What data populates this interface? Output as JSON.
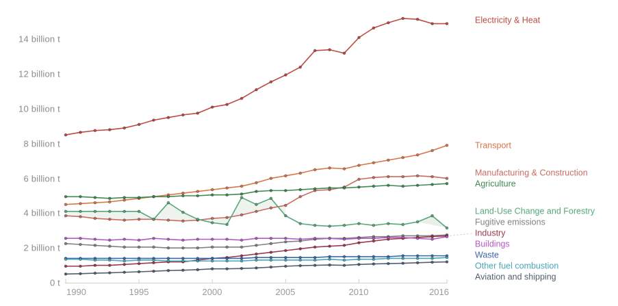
{
  "chart_data": {
    "type": "line",
    "title": "",
    "xlabel": "",
    "ylabel": "",
    "unit": "billion t",
    "grid": false,
    "legend_position": "right",
    "ylim": [
      0,
      15.6
    ],
    "x": [
      1990,
      1991,
      1992,
      1993,
      1994,
      1995,
      1996,
      1997,
      1998,
      1999,
      2000,
      2001,
      2002,
      2003,
      2004,
      2005,
      2006,
      2007,
      2008,
      2009,
      2010,
      2011,
      2012,
      2013,
      2014,
      2015,
      2016
    ],
    "x_tick_years": [
      1990,
      1995,
      2000,
      2005,
      2010,
      2016
    ],
    "x_tick_labels": [
      "1990",
      "1995",
      "2000",
      "2005",
      "2010",
      "2016"
    ],
    "y_tick_values": [
      0,
      2,
      4,
      6,
      8,
      10,
      12,
      14
    ],
    "y_tick_labels": [
      "0 t",
      "2 billion t",
      "4 billion t",
      "6 billion t",
      "8 billion t",
      "10 billion t",
      "12 billion t",
      "14 billion t"
    ],
    "series": [
      {
        "name": "Electricity & Heat",
        "color": "#bf4a44",
        "values": [
          8.5,
          8.65,
          8.75,
          8.8,
          8.9,
          9.1,
          9.35,
          9.5,
          9.65,
          9.75,
          10.1,
          10.25,
          10.6,
          11.1,
          11.55,
          11.95,
          12.4,
          13.35,
          13.4,
          13.2,
          14.1,
          14.65,
          14.95,
          15.2,
          15.15,
          14.9,
          14.9
        ]
      },
      {
        "name": "Transport",
        "color": "#d9764a",
        "values": [
          4.5,
          4.55,
          4.6,
          4.65,
          4.75,
          4.85,
          4.95,
          5.05,
          5.15,
          5.25,
          5.35,
          5.45,
          5.55,
          5.75,
          6.0,
          6.15,
          6.3,
          6.5,
          6.6,
          6.55,
          6.75,
          6.9,
          7.05,
          7.2,
          7.35,
          7.6,
          7.9
        ]
      },
      {
        "name": "Manufacturing & Construction",
        "color": "#c96d62",
        "values": [
          3.85,
          3.8,
          3.7,
          3.65,
          3.6,
          3.65,
          3.65,
          3.6,
          3.55,
          3.6,
          3.7,
          3.75,
          3.9,
          4.1,
          4.3,
          4.45,
          4.95,
          5.3,
          5.35,
          5.5,
          5.95,
          6.05,
          6.1,
          6.1,
          6.15,
          6.1,
          6.0
        ]
      },
      {
        "name": "Agriculture",
        "color": "#418a55",
        "values": [
          4.95,
          4.95,
          4.9,
          4.85,
          4.9,
          4.9,
          4.95,
          4.95,
          5.0,
          5.0,
          5.05,
          5.05,
          5.1,
          5.25,
          5.3,
          5.3,
          5.35,
          5.4,
          5.45,
          5.45,
          5.5,
          5.55,
          5.6,
          5.55,
          5.6,
          5.65,
          5.7
        ]
      },
      {
        "name": "Land-Use Change and Forestry",
        "color": "#57a77c",
        "values": [
          4.1,
          4.1,
          4.1,
          4.1,
          4.1,
          4.1,
          3.65,
          4.6,
          4.05,
          3.65,
          3.45,
          3.35,
          4.9,
          4.5,
          4.85,
          3.85,
          3.4,
          3.3,
          3.25,
          3.3,
          3.4,
          3.3,
          3.4,
          3.35,
          3.5,
          3.85,
          3.15
        ]
      },
      {
        "name": "Fugitive emissions",
        "color": "#828282",
        "values": [
          2.25,
          2.2,
          2.15,
          2.1,
          2.05,
          2.05,
          2.05,
          2.0,
          2.0,
          2.0,
          2.05,
          2.05,
          2.05,
          2.15,
          2.25,
          2.35,
          2.4,
          2.5,
          2.55,
          2.55,
          2.6,
          2.65,
          2.65,
          2.7,
          2.7,
          2.7,
          2.75
        ]
      },
      {
        "name": "Industry",
        "color": "#9c3a4e",
        "values": [
          0.95,
          0.95,
          1.0,
          1.0,
          1.05,
          1.1,
          1.15,
          1.2,
          1.2,
          1.3,
          1.4,
          1.45,
          1.55,
          1.65,
          1.75,
          1.85,
          1.95,
          2.05,
          2.1,
          2.15,
          2.3,
          2.4,
          2.5,
          2.55,
          2.6,
          2.65,
          2.7
        ]
      },
      {
        "name": "Buildings",
        "color": "#b35bc4",
        "values": [
          2.55,
          2.55,
          2.5,
          2.45,
          2.5,
          2.45,
          2.55,
          2.5,
          2.45,
          2.5,
          2.5,
          2.5,
          2.45,
          2.55,
          2.55,
          2.55,
          2.5,
          2.55,
          2.55,
          2.5,
          2.55,
          2.55,
          2.6,
          2.6,
          2.55,
          2.5,
          2.65
        ]
      },
      {
        "name": "Waste",
        "color": "#3d68ae",
        "values": [
          1.4,
          1.4,
          1.4,
          1.4,
          1.4,
          1.4,
          1.4,
          1.4,
          1.4,
          1.4,
          1.4,
          1.4,
          1.4,
          1.45,
          1.45,
          1.45,
          1.45,
          1.45,
          1.5,
          1.5,
          1.5,
          1.5,
          1.5,
          1.55,
          1.55,
          1.55,
          1.55
        ]
      },
      {
        "name": "Other fuel combustion",
        "color": "#49a8b8",
        "values": [
          1.35,
          1.35,
          1.3,
          1.3,
          1.25,
          1.3,
          1.3,
          1.25,
          1.25,
          1.25,
          1.25,
          1.25,
          1.25,
          1.3,
          1.3,
          1.3,
          1.3,
          1.3,
          1.35,
          1.3,
          1.35,
          1.35,
          1.4,
          1.4,
          1.4,
          1.4,
          1.45
        ]
      },
      {
        "name": "Aviation and shipping",
        "color": "#525f6e",
        "values": [
          0.5,
          0.52,
          0.55,
          0.57,
          0.6,
          0.63,
          0.66,
          0.7,
          0.72,
          0.75,
          0.8,
          0.8,
          0.82,
          0.85,
          0.9,
          0.95,
          0.98,
          1.0,
          1.02,
          1.0,
          1.05,
          1.08,
          1.1,
          1.12,
          1.15,
          1.18,
          1.2
        ]
      }
    ]
  },
  "colors": {
    "axis_line": "#cfcfcf",
    "axis_text": "#8b8b8b",
    "band_fill": "#8aa78a"
  }
}
